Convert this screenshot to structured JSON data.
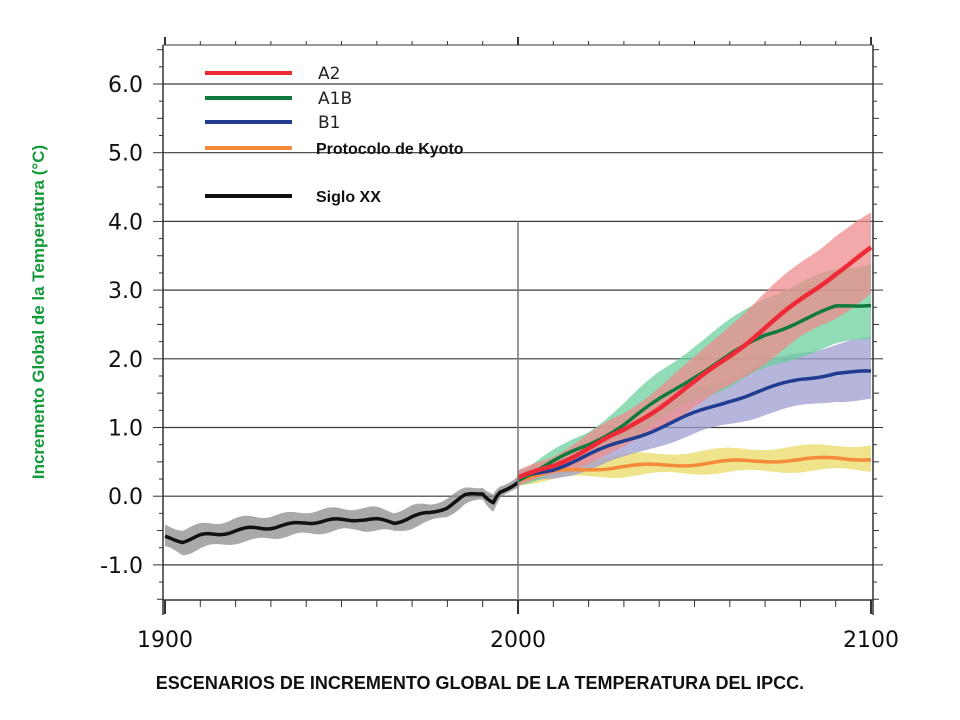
{
  "caption": "ESCENARIOS DE INCREMENTO GLOBAL DE LA TEMPERATURA DEL IPCC.",
  "chart_data": {
    "type": "line",
    "title": "",
    "xlabel": "",
    "ylabel": "Incremento Global de la Temperatura (°C)",
    "xlim": [
      1900,
      2100
    ],
    "ylim": [
      -1.5,
      6.5
    ],
    "x_ticks": [
      1900,
      2000,
      2100
    ],
    "x_tick_labels": [
      "1900",
      "2000",
      "2100"
    ],
    "y_ticks": [
      -1.0,
      0.0,
      1.0,
      2.0,
      3.0,
      4.0,
      5.0,
      6.0
    ],
    "y_tick_labels": [
      "-1.0",
      "0.0",
      "1.0",
      "2.0",
      "3.0",
      "4.0",
      "5.0",
      "6.0"
    ],
    "grid": "horizontal",
    "legend_position": "top-left",
    "series": [
      {
        "name": "A2",
        "color": "#ee2a37",
        "band_color": "#ef8c8c",
        "x": [
          2000,
          2010,
          2020,
          2030,
          2040,
          2050,
          2060,
          2070,
          2080,
          2090,
          2100
        ],
        "y": [
          0.25,
          0.45,
          0.7,
          0.95,
          1.3,
          1.65,
          2.05,
          2.45,
          2.85,
          3.25,
          3.6
        ],
        "lower": [
          0.15,
          0.3,
          0.5,
          0.7,
          1.0,
          1.3,
          1.6,
          1.95,
          2.3,
          2.6,
          2.95
        ],
        "upper": [
          0.35,
          0.6,
          0.9,
          1.2,
          1.6,
          2.0,
          2.5,
          2.95,
          3.4,
          3.8,
          4.1
        ]
      },
      {
        "name": "A1B",
        "color": "#107a3e",
        "band_color": "#6ccf9f",
        "x": [
          2000,
          2010,
          2020,
          2030,
          2040,
          2050,
          2060,
          2070,
          2080,
          2090,
          2100
        ],
        "y": [
          0.25,
          0.5,
          0.75,
          1.05,
          1.4,
          1.75,
          2.05,
          2.35,
          2.55,
          2.75,
          2.8
        ],
        "lower": [
          0.15,
          0.35,
          0.55,
          0.8,
          1.1,
          1.4,
          1.6,
          1.85,
          2.05,
          2.2,
          2.3
        ],
        "upper": [
          0.35,
          0.65,
          0.95,
          1.35,
          1.8,
          2.2,
          2.55,
          2.9,
          3.1,
          3.3,
          3.4
        ]
      },
      {
        "name": "B1",
        "color": "#213d8f",
        "band_color": "#9d9ed1",
        "x": [
          2000,
          2010,
          2020,
          2030,
          2040,
          2050,
          2060,
          2070,
          2080,
          2090,
          2100
        ],
        "y": [
          0.25,
          0.4,
          0.6,
          0.8,
          1.0,
          1.2,
          1.4,
          1.55,
          1.7,
          1.8,
          1.8
        ],
        "lower": [
          0.15,
          0.25,
          0.4,
          0.55,
          0.75,
          0.9,
          1.05,
          1.2,
          1.3,
          1.4,
          1.4
        ],
        "upper": [
          0.35,
          0.55,
          0.8,
          1.05,
          1.3,
          1.55,
          1.75,
          1.95,
          2.1,
          2.2,
          2.3
        ]
      },
      {
        "name": "Protocolo de Kyoto",
        "color": "#f58a3a",
        "band_color": "#eadb64",
        "x": [
          2000,
          2010,
          2020,
          2030,
          2040,
          2050,
          2060,
          2070,
          2080,
          2090,
          2100
        ],
        "y": [
          0.25,
          0.35,
          0.4,
          0.43,
          0.45,
          0.47,
          0.5,
          0.52,
          0.53,
          0.55,
          0.55
        ],
        "lower": [
          0.18,
          0.25,
          0.28,
          0.3,
          0.32,
          0.34,
          0.35,
          0.36,
          0.37,
          0.38,
          0.38
        ],
        "upper": [
          0.32,
          0.48,
          0.55,
          0.6,
          0.62,
          0.65,
          0.68,
          0.7,
          0.72,
          0.74,
          0.75
        ]
      },
      {
        "name": "Siglo XX",
        "color": "#111111",
        "band_color": "#8c8c8c",
        "x": [
          1900,
          1905,
          1910,
          1915,
          1920,
          1925,
          1930,
          1935,
          1940,
          1945,
          1950,
          1955,
          1960,
          1965,
          1970,
          1975,
          1980,
          1985,
          1990,
          1993,
          1995,
          2000
        ],
        "y": [
          -0.6,
          -0.65,
          -0.58,
          -0.55,
          -0.5,
          -0.47,
          -0.45,
          -0.42,
          -0.38,
          -0.36,
          -0.35,
          -0.33,
          -0.35,
          -0.38,
          -0.3,
          -0.25,
          -0.15,
          0.0,
          0.05,
          -0.1,
          0.05,
          0.22
        ],
        "lower": [
          -0.75,
          -0.85,
          -0.75,
          -0.72,
          -0.67,
          -0.65,
          -0.6,
          -0.58,
          -0.55,
          -0.52,
          -0.5,
          -0.48,
          -0.5,
          -0.52,
          -0.45,
          -0.38,
          -0.28,
          -0.12,
          -0.06,
          -0.2,
          -0.05,
          0.15
        ],
        "upper": [
          -0.42,
          -0.48,
          -0.42,
          -0.38,
          -0.33,
          -0.3,
          -0.28,
          -0.26,
          -0.22,
          -0.2,
          -0.18,
          -0.17,
          -0.18,
          -0.22,
          -0.15,
          -0.12,
          -0.02,
          0.1,
          0.15,
          0.0,
          0.15,
          0.3
        ]
      }
    ]
  }
}
